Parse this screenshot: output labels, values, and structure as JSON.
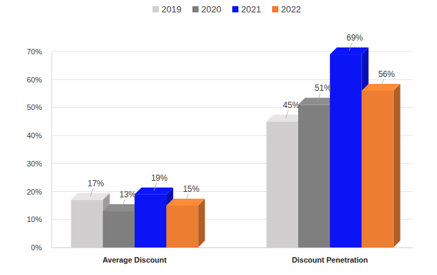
{
  "chart_data": {
    "type": "bar",
    "categories": [
      "Average Discount",
      "Discount Penetration"
    ],
    "series": [
      {
        "name": "2019",
        "color": "#d0cece",
        "values": [
          17,
          45
        ],
        "value_labels": [
          "17%",
          "45%"
        ]
      },
      {
        "name": "2020",
        "color": "#7f7f7f",
        "values": [
          13,
          51
        ],
        "value_labels": [
          "13%",
          "51%"
        ]
      },
      {
        "name": "2021",
        "color": "#0a14f5",
        "values": [
          19,
          69
        ],
        "value_labels": [
          "19%",
          "69%"
        ]
      },
      {
        "name": "2022",
        "color": "#ed7d31",
        "values": [
          15,
          56
        ],
        "value_labels": [
          "15%",
          "56%"
        ]
      }
    ],
    "ylim": [
      0,
      70
    ],
    "yticks": [
      {
        "value": 0,
        "label": "0%"
      },
      {
        "value": 10,
        "label": "10%"
      },
      {
        "value": 20,
        "label": "20%"
      },
      {
        "value": 30,
        "label": "30%"
      },
      {
        "value": 40,
        "label": "40%"
      },
      {
        "value": 50,
        "label": "50%"
      },
      {
        "value": 60,
        "label": "60%"
      },
      {
        "value": 70,
        "label": "70%"
      }
    ],
    "grid": true,
    "legend": "top",
    "data_labels": true
  }
}
